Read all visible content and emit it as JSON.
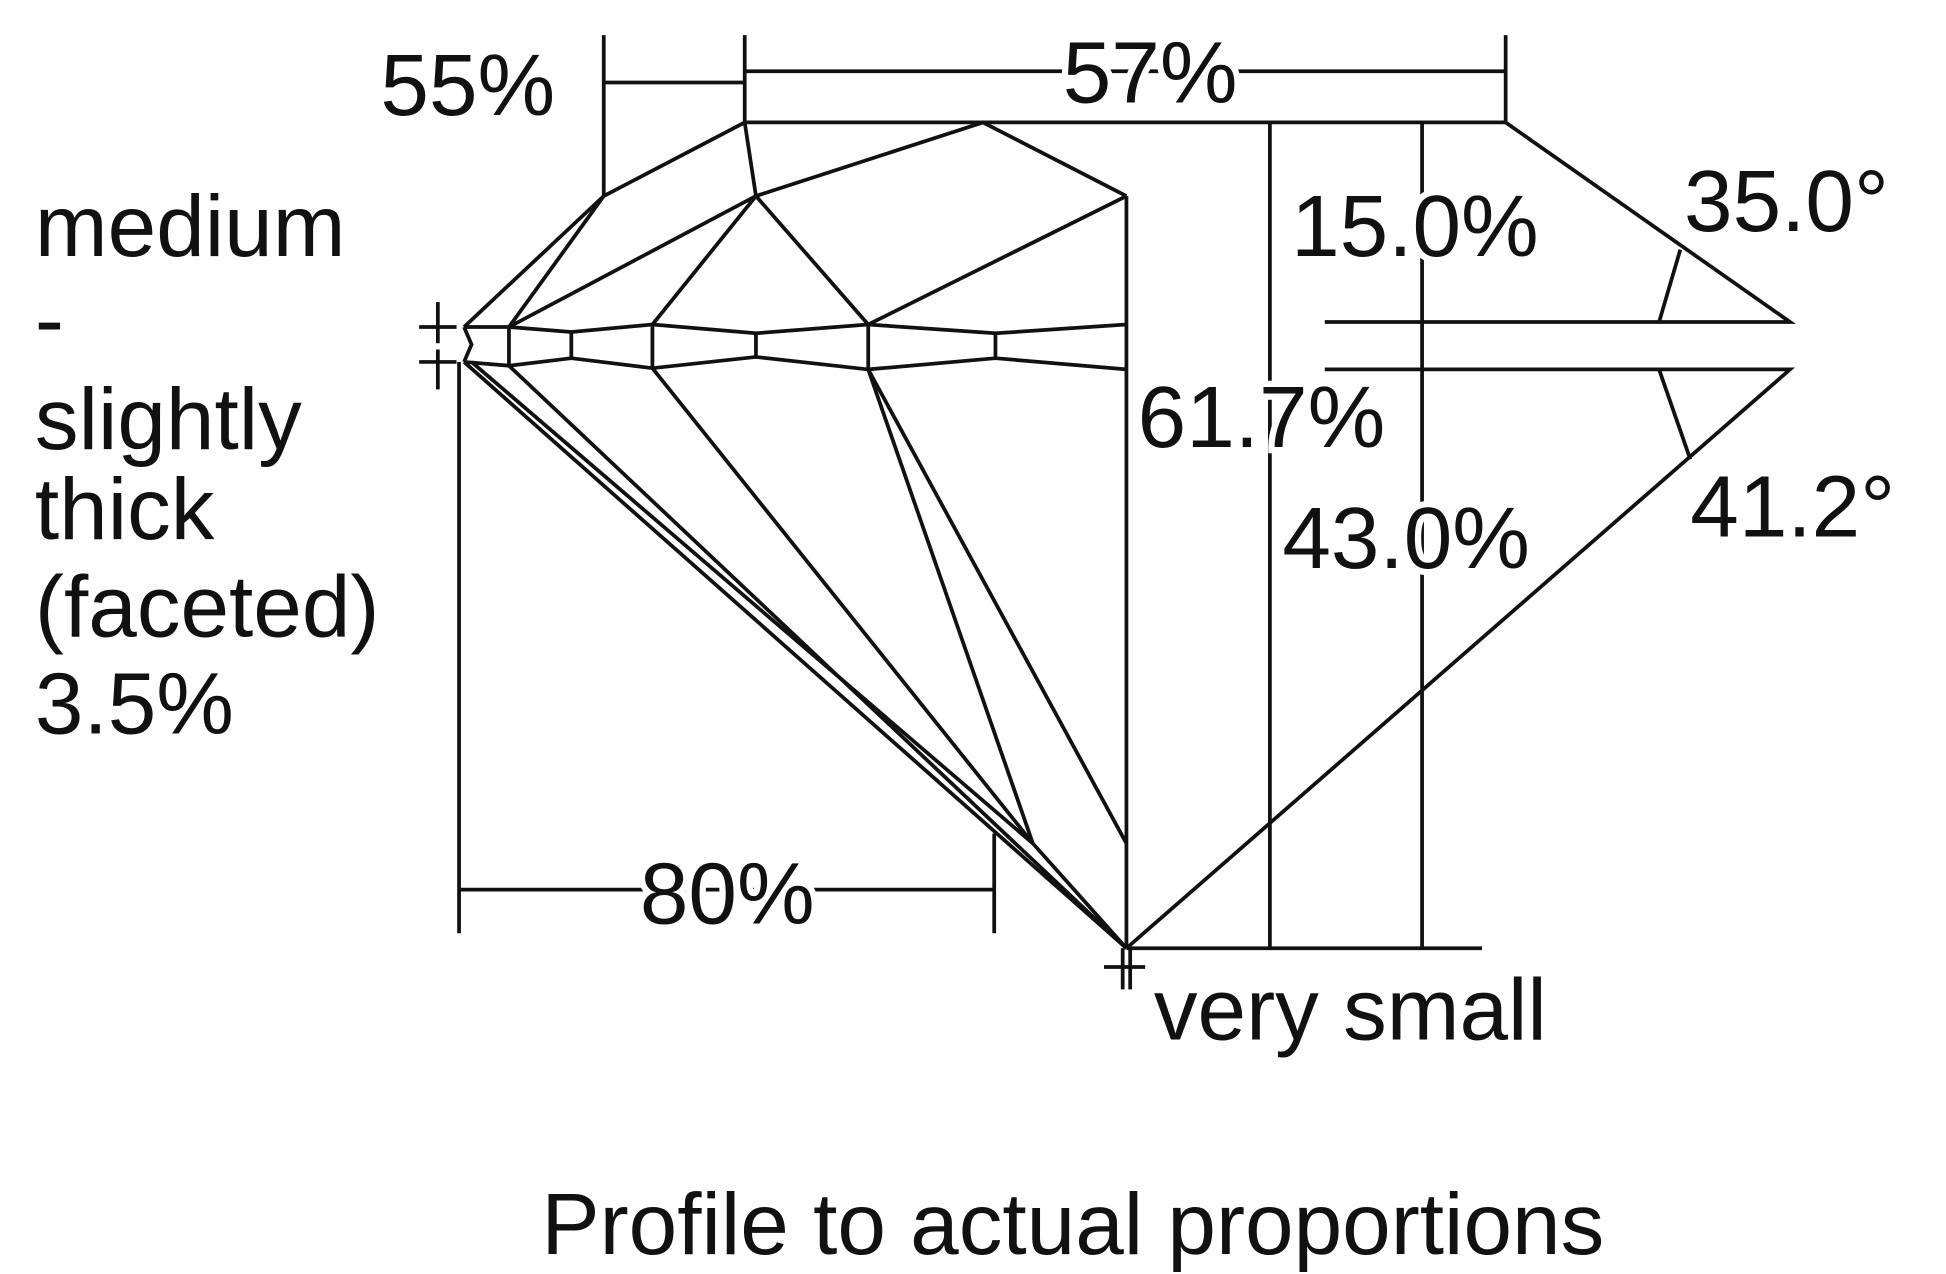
{
  "star_length": "55%",
  "table": "57%",
  "girdle": [
    "medium",
    "-",
    "slightly",
    "thick",
    "(faceted)",
    "3.5%"
  ],
  "crown_height": "15.0%",
  "crown_angle": "35.0°",
  "total_depth": "61.7%",
  "pavilion_depth": "43.0%",
  "pavilion_angle": "41.2°",
  "lower_half": "80%",
  "culet": "very small",
  "caption": "Profile to actual proportions"
}
